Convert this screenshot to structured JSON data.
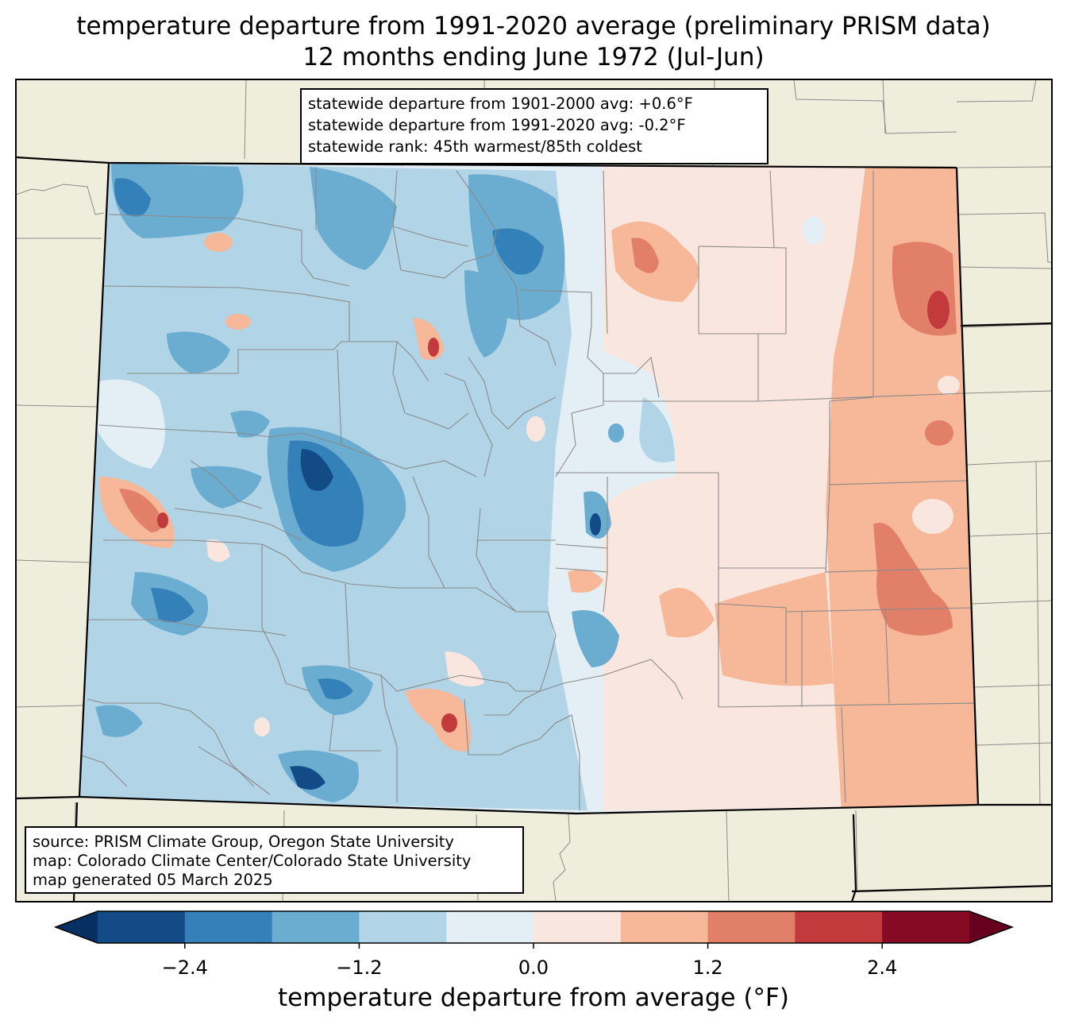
{
  "title": {
    "line1": "temperature departure from 1991-2020 average (preliminary PRISM data)",
    "line2": "12 months ending June 1972 (Jul-Jun)"
  },
  "stats": {
    "line1": "statewide departure from 1901-2000 avg: +0.6°F",
    "line2": "statewide departure from 1991-2020 avg: -0.2°F",
    "line3": "statewide rank: 45th warmest/85th coldest"
  },
  "source": {
    "line1": "source: PRISM Climate Group, Oregon State University",
    "line2": "map: Colorado Climate Center/Colorado State University",
    "line3": "map generated 05 March 2025"
  },
  "colorbar": {
    "label": "temperature departure from average (°F)",
    "ticks": [
      {
        "value": -2.4,
        "label": "−2.4"
      },
      {
        "value": -1.2,
        "label": "−1.2"
      },
      {
        "value": 0.0,
        "label": "0.0"
      },
      {
        "value": 1.2,
        "label": "1.2"
      },
      {
        "value": 2.4,
        "label": "2.4"
      }
    ],
    "range": [
      -3.0,
      3.0
    ],
    "step": 0.6,
    "colors": [
      "#134b87",
      "#3480b9",
      "#6bacd1",
      "#b1d4e7",
      "#e3eef5",
      "#f9e7df",
      "#f7b799",
      "#e27f68",
      "#c23a3b",
      "#870a24"
    ],
    "under_color": "#053061",
    "over_color": "#67001f"
  },
  "map": {
    "background_color": "#efeedd",
    "state": "Colorado"
  }
}
